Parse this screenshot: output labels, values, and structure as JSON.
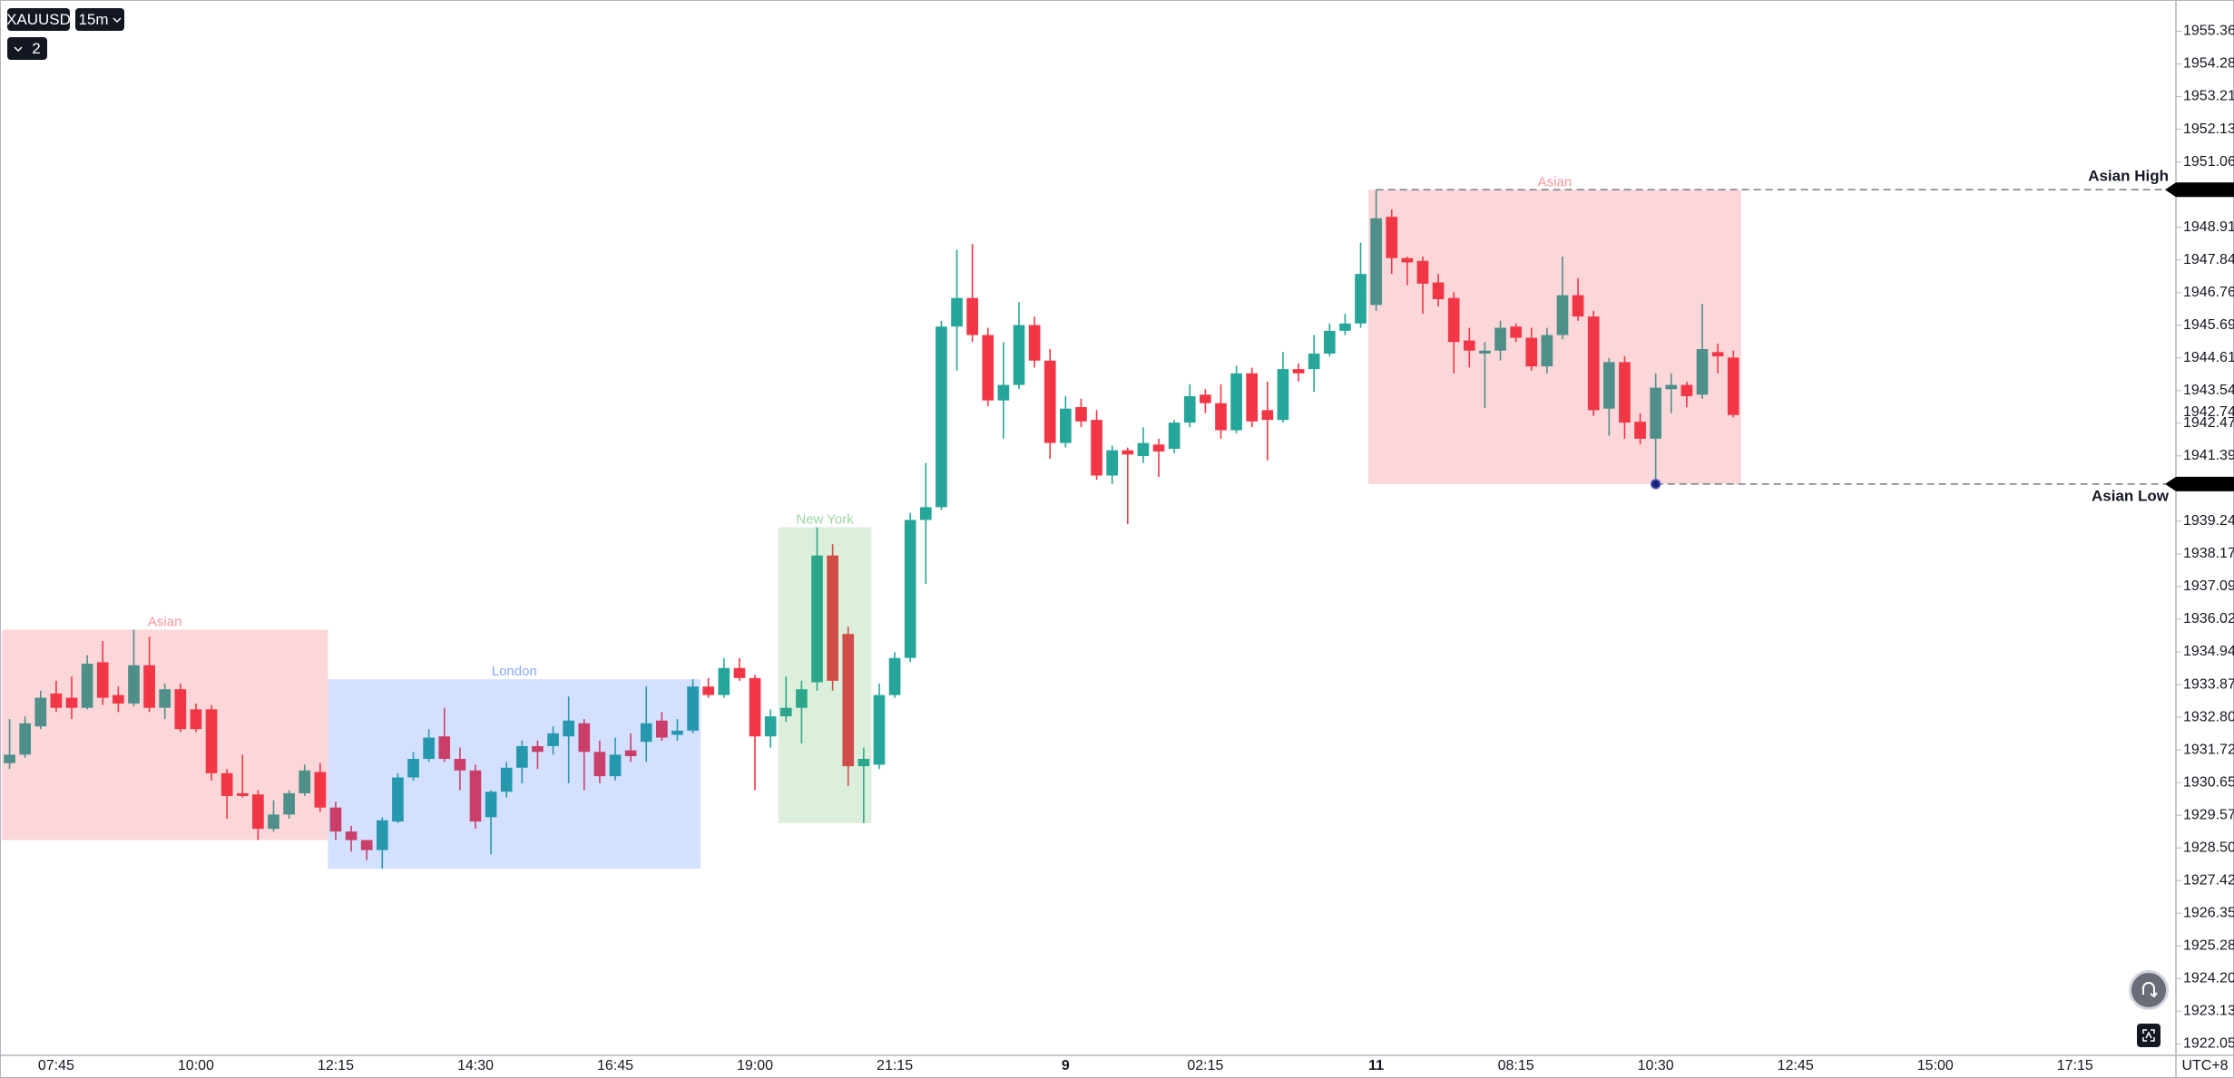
{
  "chart_data": {
    "type": "candlestick",
    "up_color": "#26a69a",
    "down_color": "#f23645",
    "ylim": [
      1921.68,
      1956.39
    ],
    "yticks": [
      1955.362,
      1954.288,
      1953.214,
      1952.139,
      1951.065,
      1948.916,
      1947.842,
      1946.767,
      1945.693,
      1944.619,
      1943.544,
      {
        "value": 1942.47,
        "label": "1942.470"
      },
      1941.396,
      1939.247,
      1938.172,
      1937.098,
      1936.024,
      1934.949,
      1933.875,
      1932.801,
      1931.726,
      1930.652,
      1929.577,
      1928.503,
      1927.429,
      1926.354,
      {
        "value": 1925.28,
        "label": "1925.280"
      },
      1924.206,
      1923.131,
      1922.057
    ],
    "last_price": 1942.742,
    "categories": [
      null,
      null,
      null,
      "07:45",
      null,
      null,
      null,
      null,
      null,
      null,
      null,
      null,
      "10:00",
      null,
      null,
      null,
      null,
      null,
      null,
      null,
      null,
      "12:15",
      null,
      null,
      null,
      null,
      null,
      null,
      null,
      null,
      "14:30",
      null,
      null,
      null,
      null,
      null,
      null,
      null,
      null,
      "16:45",
      null,
      null,
      null,
      null,
      null,
      null,
      null,
      null,
      "19:00",
      null,
      null,
      null,
      null,
      null,
      null,
      null,
      null,
      "21:15",
      null,
      null,
      null,
      null,
      null,
      null,
      null,
      null,
      null,
      null,
      "9",
      null,
      null,
      null,
      null,
      null,
      null,
      null,
      null,
      "02:15",
      null,
      null,
      null,
      null,
      null,
      null,
      null,
      null,
      null,
      null,
      "11",
      null,
      null,
      null,
      null,
      null,
      null,
      null,
      null,
      "08:15",
      null,
      null,
      null,
      null,
      null,
      null,
      null,
      null,
      "10:30",
      null,
      null,
      null,
      null,
      null,
      null,
      null,
      null,
      "12:45",
      null,
      null,
      null,
      null,
      null,
      null,
      null,
      null,
      "15:00",
      null,
      null,
      null,
      null,
      null,
      null,
      null,
      null,
      "17:15",
      null,
      null,
      null,
      null,
      null,
      null
    ],
    "open": [
      1931.29,
      1931.57,
      1932.5,
      1933.58,
      1933.44,
      1933.11,
      1934.61,
      1933.53,
      1933.25,
      1934.51,
      1933.11,
      1933.72,
      1933.06,
      1933.06,
      1930.96,
      1930.3,
      1930.26,
      1929.13,
      1929.6,
      1930.3,
      1931.0,
      1929.83,
      1929.04,
      1928.76,
      1928.43,
      1929.37,
      1930.82,
      1931.43,
      1932.17,
      1931.43,
      1931.05,
      1929.51,
      1930.35,
      1931.14,
      1931.85,
      1931.85,
      1932.17,
      1932.6,
      1931.66,
      1930.86,
      1931.71,
      1931.99,
      1932.69,
      1932.22,
      1932.36,
      1933.81,
      1933.53,
      1934.42,
      1934.09,
      1932.17,
      1932.83,
      1933.11,
      1933.95,
      1938.12,
      1935.54,
      1931.19,
      1931.24,
      1933.53,
      1934.75,
      1939.29,
      1939.71,
      1945.65,
      1946.59,
      1945.37,
      1943.22,
      1943.73,
      1945.7,
      1944.53,
      1941.82,
      1943.0,
      1942.58,
      1940.75,
      1941.58,
      1941.39,
      1941.77,
      1941.63,
      1942.49,
      1943.41,
      1943.13,
      1942.24,
      1944.11,
      1942.9,
      1942.58,
      1944.25,
      1944.25,
      1944.76,
      1945.51,
      1945.75,
      1946.36,
      1949.26,
      1947.9,
      1947.81,
      1947.1,
      1946.59,
      1945.19,
      1944.76,
      1944.86,
      1945.65,
      1945.28,
      1944.34,
      1945.37,
      1946.68,
      1945.98,
      1942.95,
      1944.48,
      1942.52,
      1941.96,
      1943.59,
      1943.73,
      1943.41,
      1944.81,
      1944.63,
      null,
      null,
      null,
      null,
      null,
      null,
      null,
      null,
      null,
      null,
      null,
      null,
      null,
      null,
      null,
      null,
      null,
      null,
      null,
      null,
      null,
      null,
      null,
      null,
      null,
      null,
      null,
      null
    ],
    "high": [
      1932.74,
      1932.83,
      1933.67,
      1934.0,
      1934.14,
      1934.84,
      1935.31,
      1933.81,
      1935.68,
      1935.45,
      1933.91,
      1933.91,
      1933.25,
      1933.2,
      1931.1,
      1931.57,
      1930.4,
      1930.07,
      1930.4,
      1931.24,
      1931.29,
      1930.02,
      1929.23,
      1928.76,
      1929.51,
      1930.96,
      1931.66,
      1932.41,
      1933.11,
      1931.8,
      1931.24,
      1930.4,
      1931.33,
      1932.03,
      1932.03,
      1932.5,
      1933.48,
      1932.74,
      1932.03,
      1932.13,
      1932.27,
      1933.81,
      1932.97,
      1932.74,
      1934.05,
      1934.09,
      1934.75,
      1934.75,
      1934.19,
      1933.06,
      1934.14,
      1934.0,
      1939.05,
      1938.49,
      1935.78,
      1931.8,
      1933.91,
      1934.94,
      1939.52,
      1941.16,
      1945.84,
      1948.18,
      1948.37,
      1945.61,
      1945.14,
      1946.45,
      1945.98,
      1944.91,
      1943.37,
      1943.28,
      1942.9,
      1941.73,
      1941.67,
      1942.34,
      1941.96,
      1942.58,
      1943.75,
      1943.59,
      1943.75,
      1944.36,
      1944.3,
      1943.84,
      1944.81,
      1944.44,
      1945.37,
      1945.75,
      1946.07,
      1948.41,
      1950.15,
      1949.5,
      1947.95,
      1947.95,
      1947.38,
      1946.78,
      1945.61,
      1945.14,
      1945.84,
      1945.75,
      1945.61,
      1945.61,
      1947.95,
      1947.24,
      1946.17,
      1944.62,
      1944.67,
      1942.8,
      1944.11,
      1944.11,
      1943.84,
      1946.4,
      1945.09,
      1944.86,
      null,
      null,
      null,
      null,
      null,
      null,
      null,
      null,
      null,
      null,
      null,
      null,
      null,
      null,
      null,
      null,
      null,
      null,
      null,
      null,
      null,
      null,
      null,
      null,
      null,
      null,
      null,
      null
    ],
    "low": [
      1931.1,
      1931.47,
      1932.41,
      1932.97,
      1932.74,
      1933.06,
      1933.2,
      1932.97,
      1933.16,
      1932.97,
      1932.74,
      1932.31,
      1932.31,
      1930.72,
      1929.46,
      1930.16,
      1928.76,
      1929.04,
      1929.46,
      1930.21,
      1929.69,
      1928.76,
      1928.38,
      1928.1,
      1927.82,
      1929.32,
      1930.72,
      1931.33,
      1931.33,
      1930.4,
      1929.13,
      1928.29,
      1930.16,
      1930.63,
      1931.1,
      1931.57,
      1930.63,
      1930.4,
      1930.63,
      1930.72,
      1931.33,
      1931.33,
      1932.03,
      1932.03,
      1932.27,
      1933.44,
      1933.44,
      1934.0,
      1930.4,
      1931.8,
      1932.64,
      1931.94,
      1933.67,
      1933.67,
      1930.54,
      1929.32,
      1931.1,
      1933.44,
      1934.61,
      1937.18,
      1939.62,
      1944.2,
      1945.14,
      1943.03,
      1941.96,
      1943.59,
      1944.3,
      1941.3,
      1941.67,
      1942.34,
      1940.61,
      1940.47,
      1939.15,
      1941.16,
      1940.7,
      1941.49,
      1942.34,
      1942.8,
      1941.96,
      1942.14,
      1942.34,
      1941.25,
      1942.49,
      1943.84,
      1943.5,
      1944.67,
      1945.37,
      1945.61,
      1946.17,
      1947.38,
      1947.01,
      1946.07,
      1946.31,
      1944.11,
      1944.3,
      1942.97,
      1944.53,
      1945.14,
      1944.2,
      1944.11,
      1945.23,
      1945.84,
      1942.71,
      1942.06,
      1941.96,
      1941.77,
      1940.47,
      1942.8,
      1942.99,
      1943.27,
      1944.11,
      1942.66,
      null,
      null,
      null,
      null,
      null,
      null,
      null,
      null,
      null,
      null,
      null,
      null,
      null,
      null,
      null,
      null,
      null,
      null,
      null,
      null,
      null,
      null,
      null,
      null,
      null,
      null,
      null,
      null
    ],
    "close": [
      1931.57,
      1932.6,
      1933.44,
      1933.11,
      1933.11,
      1934.56,
      1933.44,
      1933.25,
      1934.51,
      1933.11,
      1933.72,
      1932.41,
      1932.41,
      1930.96,
      1930.21,
      1930.21,
      1929.13,
      1929.6,
      1930.3,
      1931.05,
      1929.83,
      1929.04,
      1928.76,
      1928.43,
      1929.41,
      1930.82,
      1931.43,
      1932.13,
      1931.43,
      1931.05,
      1929.37,
      1930.35,
      1931.14,
      1931.85,
      1931.66,
      1932.27,
      1932.69,
      1931.66,
      1930.86,
      1931.57,
      1931.52,
      1932.6,
      1932.13,
      1932.36,
      1933.81,
      1933.53,
      1934.42,
      1934.09,
      1932.17,
      1932.83,
      1933.11,
      1933.72,
      1938.12,
      1934.0,
      1931.19,
      1931.43,
      1933.53,
      1934.75,
      1939.29,
      1939.71,
      1945.65,
      1946.59,
      1945.37,
      1943.22,
      1943.73,
      1945.7,
      1944.53,
      1941.82,
      1942.95,
      1942.53,
      1940.75,
      1941.58,
      1941.44,
      1941.82,
      1941.54,
      1942.49,
      1943.36,
      1943.13,
      1942.24,
      1944.11,
      1942.53,
      1942.58,
      1944.25,
      1944.11,
      1944.76,
      1945.51,
      1945.75,
      1947.38,
      1949.21,
      1947.9,
      1947.76,
      1947.06,
      1946.55,
      1945.14,
      1944.86,
      1944.86,
      1945.61,
      1945.28,
      1944.34,
      1945.37,
      1946.68,
      1945.98,
      1942.9,
      1944.48,
      1942.49,
      1941.96,
      1943.64,
      1943.73,
      1943.36,
      1944.91,
      1944.67,
      1942.74,
      null,
      null,
      null,
      null,
      null,
      null,
      null,
      null,
      null,
      null,
      null,
      null,
      null,
      null,
      null,
      null,
      null,
      null,
      null,
      null,
      null,
      null,
      null,
      null,
      null,
      null,
      null,
      null
    ],
    "sessions": [
      {
        "name": "Asian",
        "color": "#f23645"
      },
      {
        "name": "London",
        "color": "#2962ff"
      },
      {
        "name": "New York",
        "color": "#4caf50"
      },
      {
        "name": "Asian",
        "color": "#f23645"
      }
    ],
    "annotations": [
      {
        "text": "Asian High",
        "value": 1950.15
      },
      {
        "text": "Asian Low",
        "value": 1940.47
      }
    ]
  },
  "ui": {
    "symbol": "XAUUSD",
    "interval": "15m",
    "indicator_count": 2,
    "timezone": "UTC+8"
  }
}
